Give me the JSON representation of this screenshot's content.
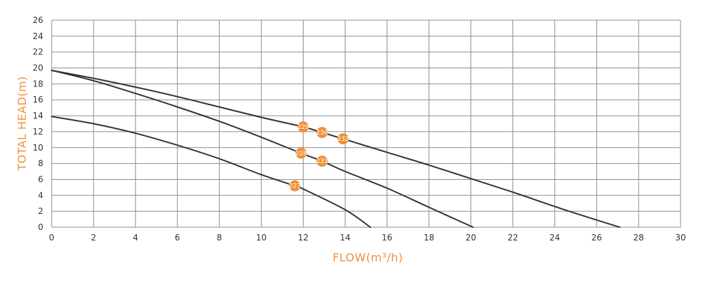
{
  "chart_data": {
    "type": "line",
    "xlabel": "FLOW(m³/h)",
    "ylabel": "TOTAL HEAD(m)",
    "xlim": [
      0,
      30
    ],
    "ylim": [
      0,
      26
    ],
    "xticks": [
      0,
      2,
      4,
      6,
      8,
      10,
      12,
      14,
      16,
      18,
      20,
      22,
      24,
      26,
      28,
      30
    ],
    "yticks": [
      0,
      2,
      4,
      6,
      8,
      10,
      12,
      14,
      16,
      18,
      20,
      22,
      24,
      26
    ],
    "grid": true,
    "series": [
      {
        "x": [
          0,
          2,
          4,
          6,
          8,
          10,
          11.6,
          12,
          14,
          15.2
        ],
        "y": [
          13.9,
          13.0,
          11.8,
          10.3,
          8.6,
          6.6,
          5.2,
          4.8,
          2.2,
          0
        ]
      },
      {
        "x": [
          0,
          2,
          4,
          6,
          8,
          10,
          11.9,
          12.9,
          14,
          16,
          18,
          20.1
        ],
        "y": [
          19.7,
          18.4,
          16.8,
          15.1,
          13.3,
          11.3,
          9.3,
          8.3,
          7.0,
          4.9,
          2.5,
          0
        ]
      },
      {
        "x": [
          0,
          2,
          4,
          6,
          8,
          10,
          12,
          12.9,
          13.9,
          16,
          18,
          20,
          22,
          24,
          26,
          27.1
        ],
        "y": [
          19.7,
          18.7,
          17.6,
          16.4,
          15.1,
          13.8,
          12.6,
          11.9,
          11.1,
          9.4,
          7.8,
          6.1,
          4.4,
          2.6,
          0.9,
          0
        ]
      }
    ],
    "markers": [
      {
        "label": "227",
        "x": 11.6,
        "y": 5.2
      },
      {
        "label": "228",
        "x": 11.9,
        "y": 9.3
      },
      {
        "label": "231",
        "x": 12.9,
        "y": 8.3
      },
      {
        "label": "229",
        "x": 12.0,
        "y": 12.6
      },
      {
        "label": "230",
        "x": 12.9,
        "y": 11.9
      },
      {
        "label": "232",
        "x": 13.9,
        "y": 11.1
      }
    ],
    "colors": {
      "curve": "#333333",
      "grid": "#8c8c8c",
      "marker": "#f0913a",
      "label": "#f0913a",
      "tick": "#333333"
    }
  }
}
